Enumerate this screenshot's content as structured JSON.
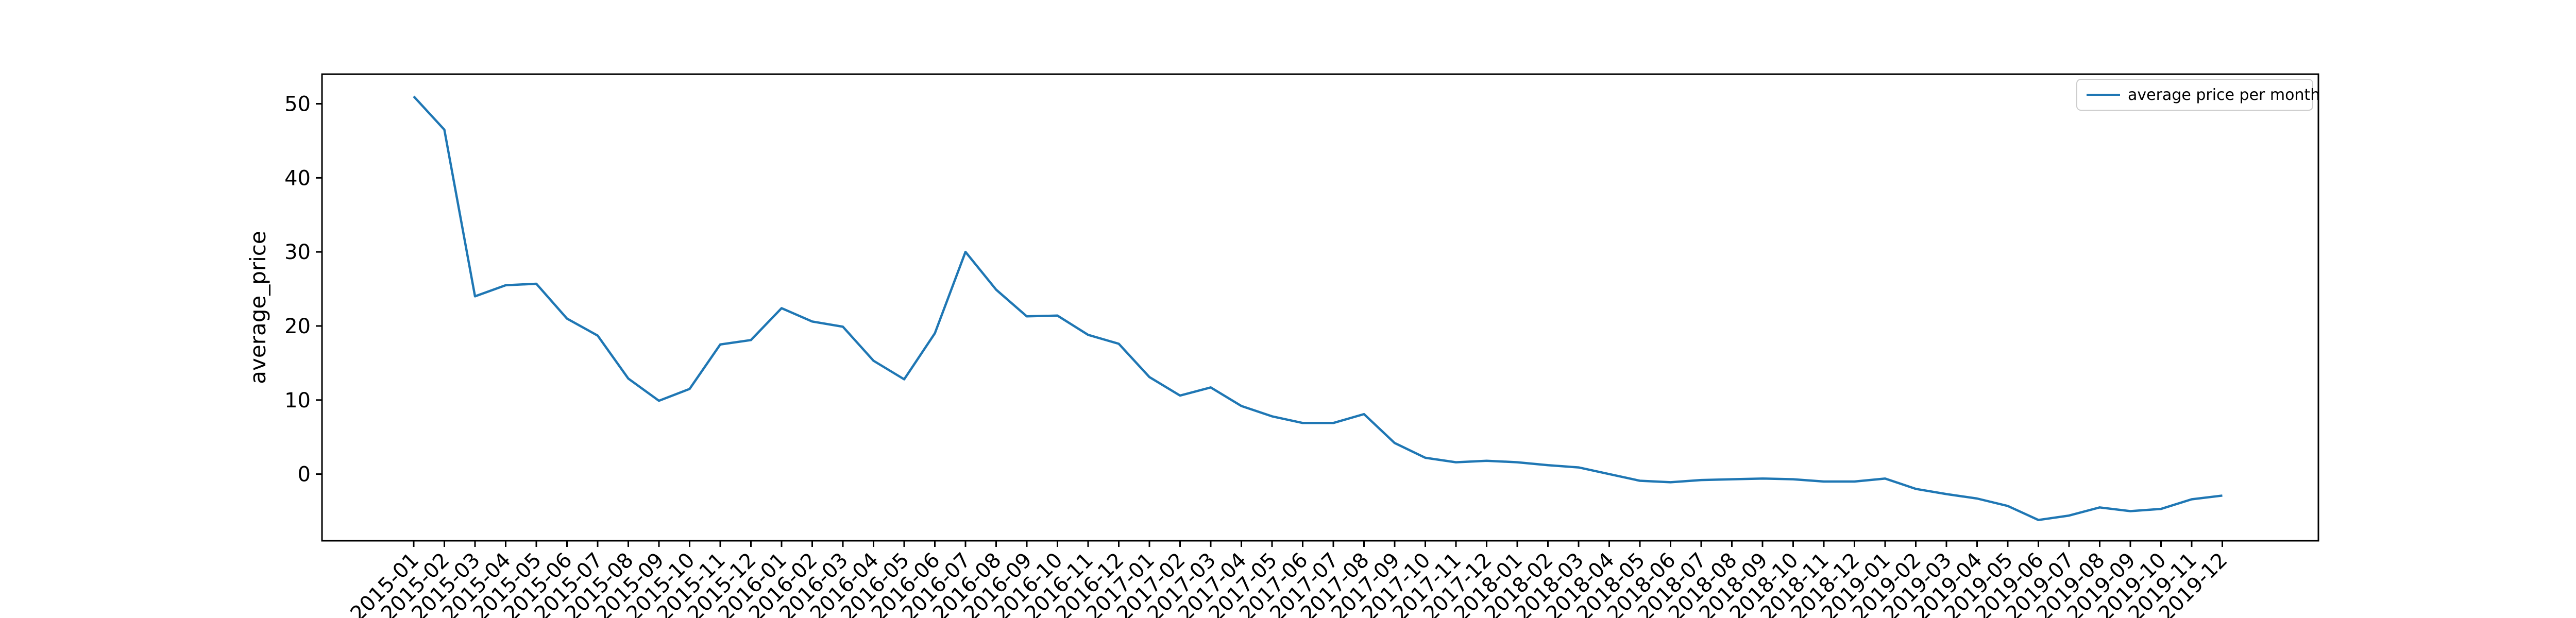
{
  "chart_data": {
    "type": "line",
    "title": "",
    "xlabel": "",
    "ylabel": "average_price",
    "ylim": [
      -9,
      54
    ],
    "yticks": [
      0,
      10,
      20,
      30,
      40,
      50
    ],
    "grid": false,
    "legend": {
      "placement": "top-right"
    },
    "x": [
      "2015-01",
      "2015-02",
      "2015-03",
      "2015-04",
      "2015-05",
      "2015-06",
      "2015-07",
      "2015-08",
      "2015-09",
      "2015-10",
      "2015-11",
      "2015-12",
      "2016-01",
      "2016-02",
      "2016-03",
      "2016-04",
      "2016-05",
      "2016-06",
      "2016-07",
      "2016-08",
      "2016-09",
      "2016-10",
      "2016-11",
      "2016-12",
      "2017-01",
      "2017-02",
      "2017-03",
      "2017-04",
      "2017-05",
      "2017-06",
      "2017-07",
      "2017-08",
      "2017-09",
      "2017-10",
      "2017-11",
      "2017-12",
      "2018-01",
      "2018-02",
      "2018-03",
      "2018-04",
      "2018-05",
      "2018-06",
      "2018-07",
      "2018-08",
      "2018-09",
      "2018-10",
      "2018-11",
      "2018-12",
      "2019-01",
      "2019-02",
      "2019-03",
      "2019-04",
      "2019-05",
      "2019-06",
      "2019-07",
      "2019-08",
      "2019-09",
      "2019-10",
      "2019-11",
      "2019-12"
    ],
    "series": [
      {
        "name": "average price per month",
        "color": "#1f77b4",
        "values": [
          51,
          46.5,
          24,
          25.5,
          25.7,
          21,
          18.7,
          12.9,
          9.9,
          11.5,
          17.5,
          18.1,
          22.4,
          20.6,
          19.9,
          15.3,
          12.8,
          19,
          30,
          24.9,
          21.3,
          21.4,
          18.8,
          17.6,
          13.1,
          10.6,
          11.7,
          9.2,
          7.8,
          6.9,
          6.9,
          8.1,
          4.2,
          2.2,
          1.6,
          1.8,
          1.6,
          1.2,
          0.9,
          0,
          -0.9,
          -1.1,
          -0.8,
          -0.7,
          -0.6,
          -0.7,
          -1,
          -1,
          -0.6,
          -2,
          -2.7,
          -3.3,
          -4.3,
          -6.2,
          -5.6,
          -4.5,
          -5,
          -4.7,
          -3.4,
          -2.9
        ]
      }
    ]
  }
}
